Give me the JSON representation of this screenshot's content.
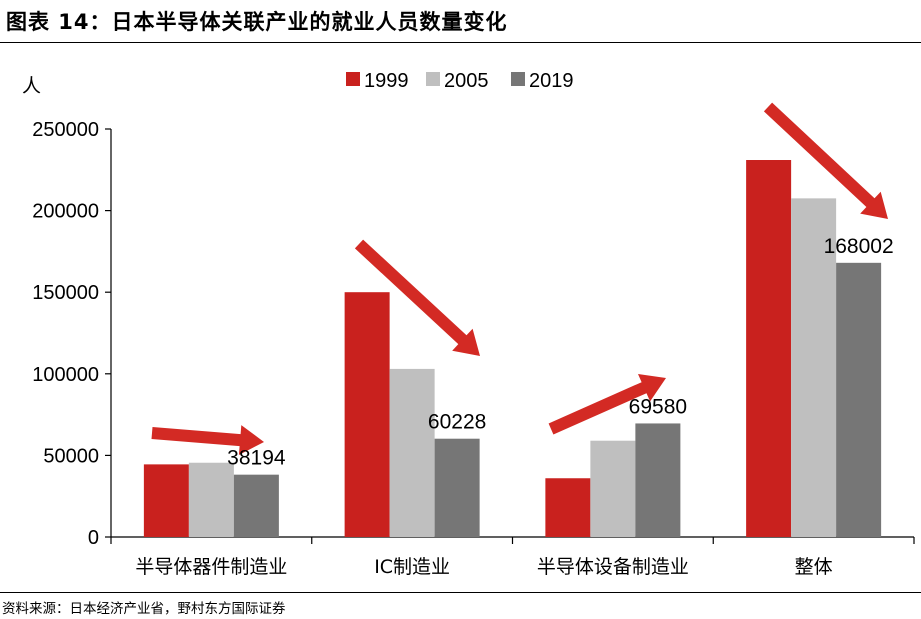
{
  "header": {
    "title": "图表 14：日本半导体关联产业的就业人员数量变化"
  },
  "source": {
    "text": "资料来源：日本经济产业省，野村东方国际证券"
  },
  "colors": {
    "s1999": "#c9211e",
    "s2005": "#bfbfbf",
    "s2019": "#767676",
    "arrow": "#d32a24"
  },
  "chart_data": {
    "type": "bar",
    "title": "",
    "ylabel": "人",
    "xlabel": "",
    "ylim": [
      0,
      250000
    ],
    "yticks": [
      "0",
      "50000",
      "100000",
      "150000",
      "200000",
      "250000"
    ],
    "grid": false,
    "legend_position": "top",
    "categories": [
      "半导体器件制造业",
      "IC制造业",
      "半导体设备制造业",
      "整体"
    ],
    "series": [
      {
        "name": "1999",
        "values": [
          44500,
          150000,
          36000,
          231000
        ]
      },
      {
        "name": "2005",
        "values": [
          45500,
          103000,
          59000,
          207500
        ]
      },
      {
        "name": "2019",
        "values": [
          38194,
          60228,
          69580,
          168002
        ]
      }
    ],
    "data_labels": [
      "38194",
      "60228",
      "69580",
      "168002"
    ],
    "annotations": [
      "trend-down-arrow",
      "trend-down-arrow",
      "trend-up-arrow",
      "trend-down-arrow"
    ]
  }
}
